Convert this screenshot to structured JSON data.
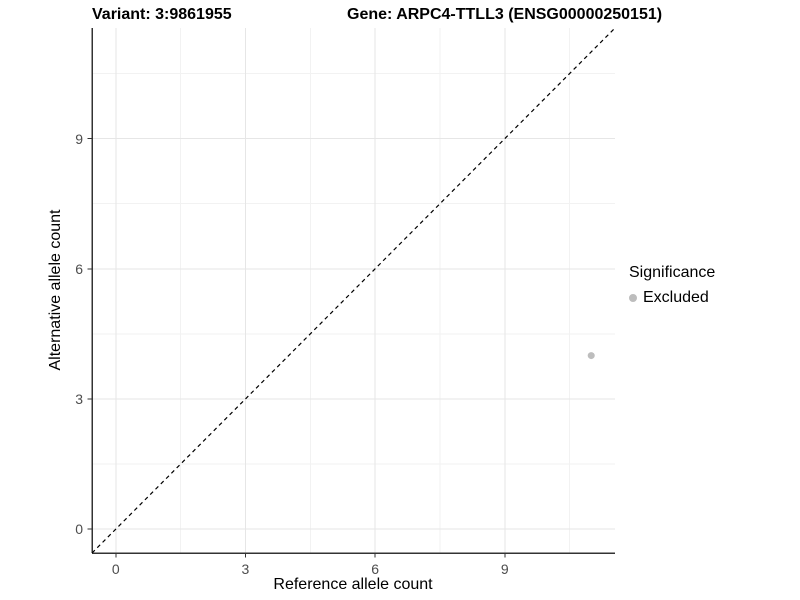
{
  "chart_data": {
    "type": "scatter",
    "titles": {
      "left": "Variant: 3:9861955",
      "right": "Gene: ARPC4-TTLL3 (ENSG00000250151)"
    },
    "xlabel": "Reference allele count",
    "ylabel": "Alternative allele count",
    "xlim": [
      -0.55,
      11.55
    ],
    "ylim": [
      -0.55,
      11.55
    ],
    "x_ticks": [
      0,
      3,
      6,
      9
    ],
    "y_ticks": [
      0,
      3,
      6,
      9
    ],
    "x_minor_ticks": [
      1.5,
      4.5,
      7.5,
      10.5
    ],
    "y_minor_ticks": [
      1.5,
      4.5,
      7.5,
      10.5
    ],
    "grid": true,
    "identity_line": {
      "style": "dashed",
      "color": "#000000",
      "from": [
        -0.55,
        -0.55
      ],
      "to": [
        11.55,
        11.55
      ]
    },
    "series": [
      {
        "name": "Excluded",
        "color": "#bdbdbd",
        "point_radius": 3.5,
        "points": [
          [
            11,
            4
          ]
        ]
      }
    ],
    "legend": {
      "title": "Significance",
      "position": "right",
      "entries": [
        {
          "label": "Excluded",
          "color": "#bdbdbd"
        }
      ]
    },
    "colors": {
      "background": "#ffffff",
      "grid_major": "#e6e6e6",
      "grid_minor": "#f2f2f2",
      "axis_line": "#333333",
      "tick_mark": "#333333",
      "tick_label": "#4d4d4d"
    }
  }
}
